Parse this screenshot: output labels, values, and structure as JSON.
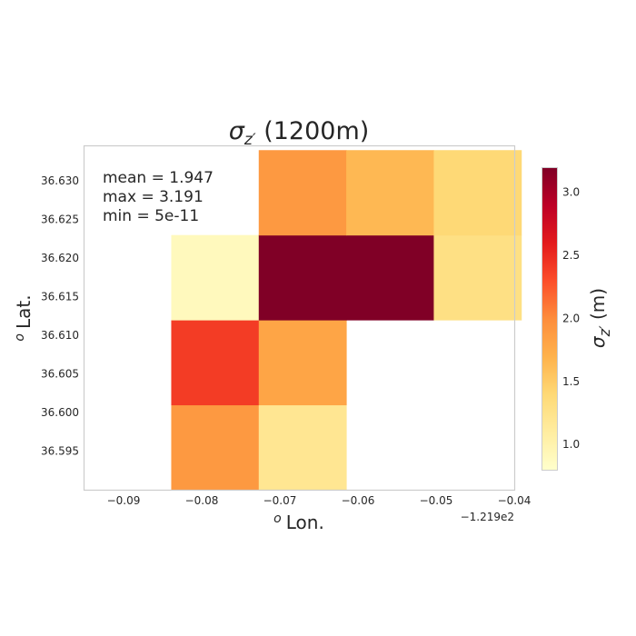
{
  "chart_data": {
    "type": "heatmap",
    "title": {
      "prefix": "σ",
      "sub": "z′",
      "suffix": " (1200m)"
    },
    "xlabel": {
      "sup": "o",
      "text": "Lon."
    },
    "ylabel": {
      "sup": "o",
      "text": "Lat."
    },
    "x_offset_label": "−1.219e2",
    "xlim": [
      -0.095,
      -0.04
    ],
    "ylim": [
      36.59,
      36.6345
    ],
    "x_edges": [
      -0.0839,
      -0.0727,
      -0.0615,
      -0.0503,
      -0.0391
    ],
    "y_edges": [
      36.59,
      36.601,
      36.612,
      36.623,
      36.634
    ],
    "x_ticks": [
      -0.09,
      -0.08,
      -0.07,
      -0.06,
      -0.05,
      -0.04
    ],
    "x_tick_labels": [
      "−0.09",
      "−0.08",
      "−0.07",
      "−0.06",
      "−0.05",
      "−0.04"
    ],
    "y_ticks": [
      36.595,
      36.6,
      36.605,
      36.61,
      36.615,
      36.62,
      36.625,
      36.63
    ],
    "y_tick_labels": [
      "36.595",
      "36.600",
      "36.605",
      "36.610",
      "36.615",
      "36.620",
      "36.625",
      "36.630"
    ],
    "values": [
      [
        1.9,
        1.2,
        null,
        null
      ],
      [
        2.4,
        1.8,
        null,
        null
      ],
      [
        0.9,
        3.191,
        3.191,
        1.3
      ],
      [
        null,
        1.9,
        1.65,
        1.4
      ]
    ],
    "colorbar": {
      "label": {
        "prefix": "σ",
        "sub": "z′",
        "suffix": " (m)"
      },
      "range": [
        0.8,
        3.191
      ],
      "ticks": [
        1.0,
        1.5,
        2.0,
        2.5,
        3.0
      ],
      "tick_labels": [
        "1.0",
        "1.5",
        "2.0",
        "2.5",
        "3.0"
      ],
      "colormap": "YlOrRd",
      "colormap_stops": [
        "#ffffcc",
        "#ffeda0",
        "#fed976",
        "#feb24c",
        "#fd8d3c",
        "#fc4e2a",
        "#e31a1c",
        "#bd0026",
        "#800026"
      ]
    },
    "annotations": [
      "mean = 1.947",
      "max = 3.191",
      "min = 5e-11"
    ],
    "grid": false,
    "spine_color": "#cccccc"
  }
}
